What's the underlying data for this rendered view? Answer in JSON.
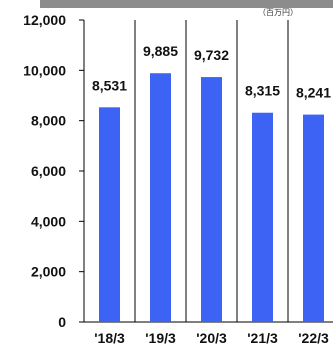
{
  "chart_data": {
    "type": "bar",
    "categories": [
      "'18/3",
      "'19/3",
      "'20/3",
      "'21/3",
      "'22/3"
    ],
    "values": [
      8531,
      9885,
      9732,
      8315,
      8241
    ],
    "value_labels": [
      "8,531",
      "9,885",
      "9,732",
      "8,315",
      "8,241"
    ],
    "unit": "（百万円）",
    "ylim": [
      0,
      12000
    ],
    "yticks": [
      0,
      2000,
      4000,
      6000,
      8000,
      10000,
      12000
    ],
    "ytick_labels": [
      "0",
      "2,000",
      "4,000",
      "6,000",
      "8,000",
      "10,000",
      "12,000"
    ],
    "grid": false,
    "bar_color": "#3d63f5",
    "header_band_color": "#8c8c8c"
  }
}
